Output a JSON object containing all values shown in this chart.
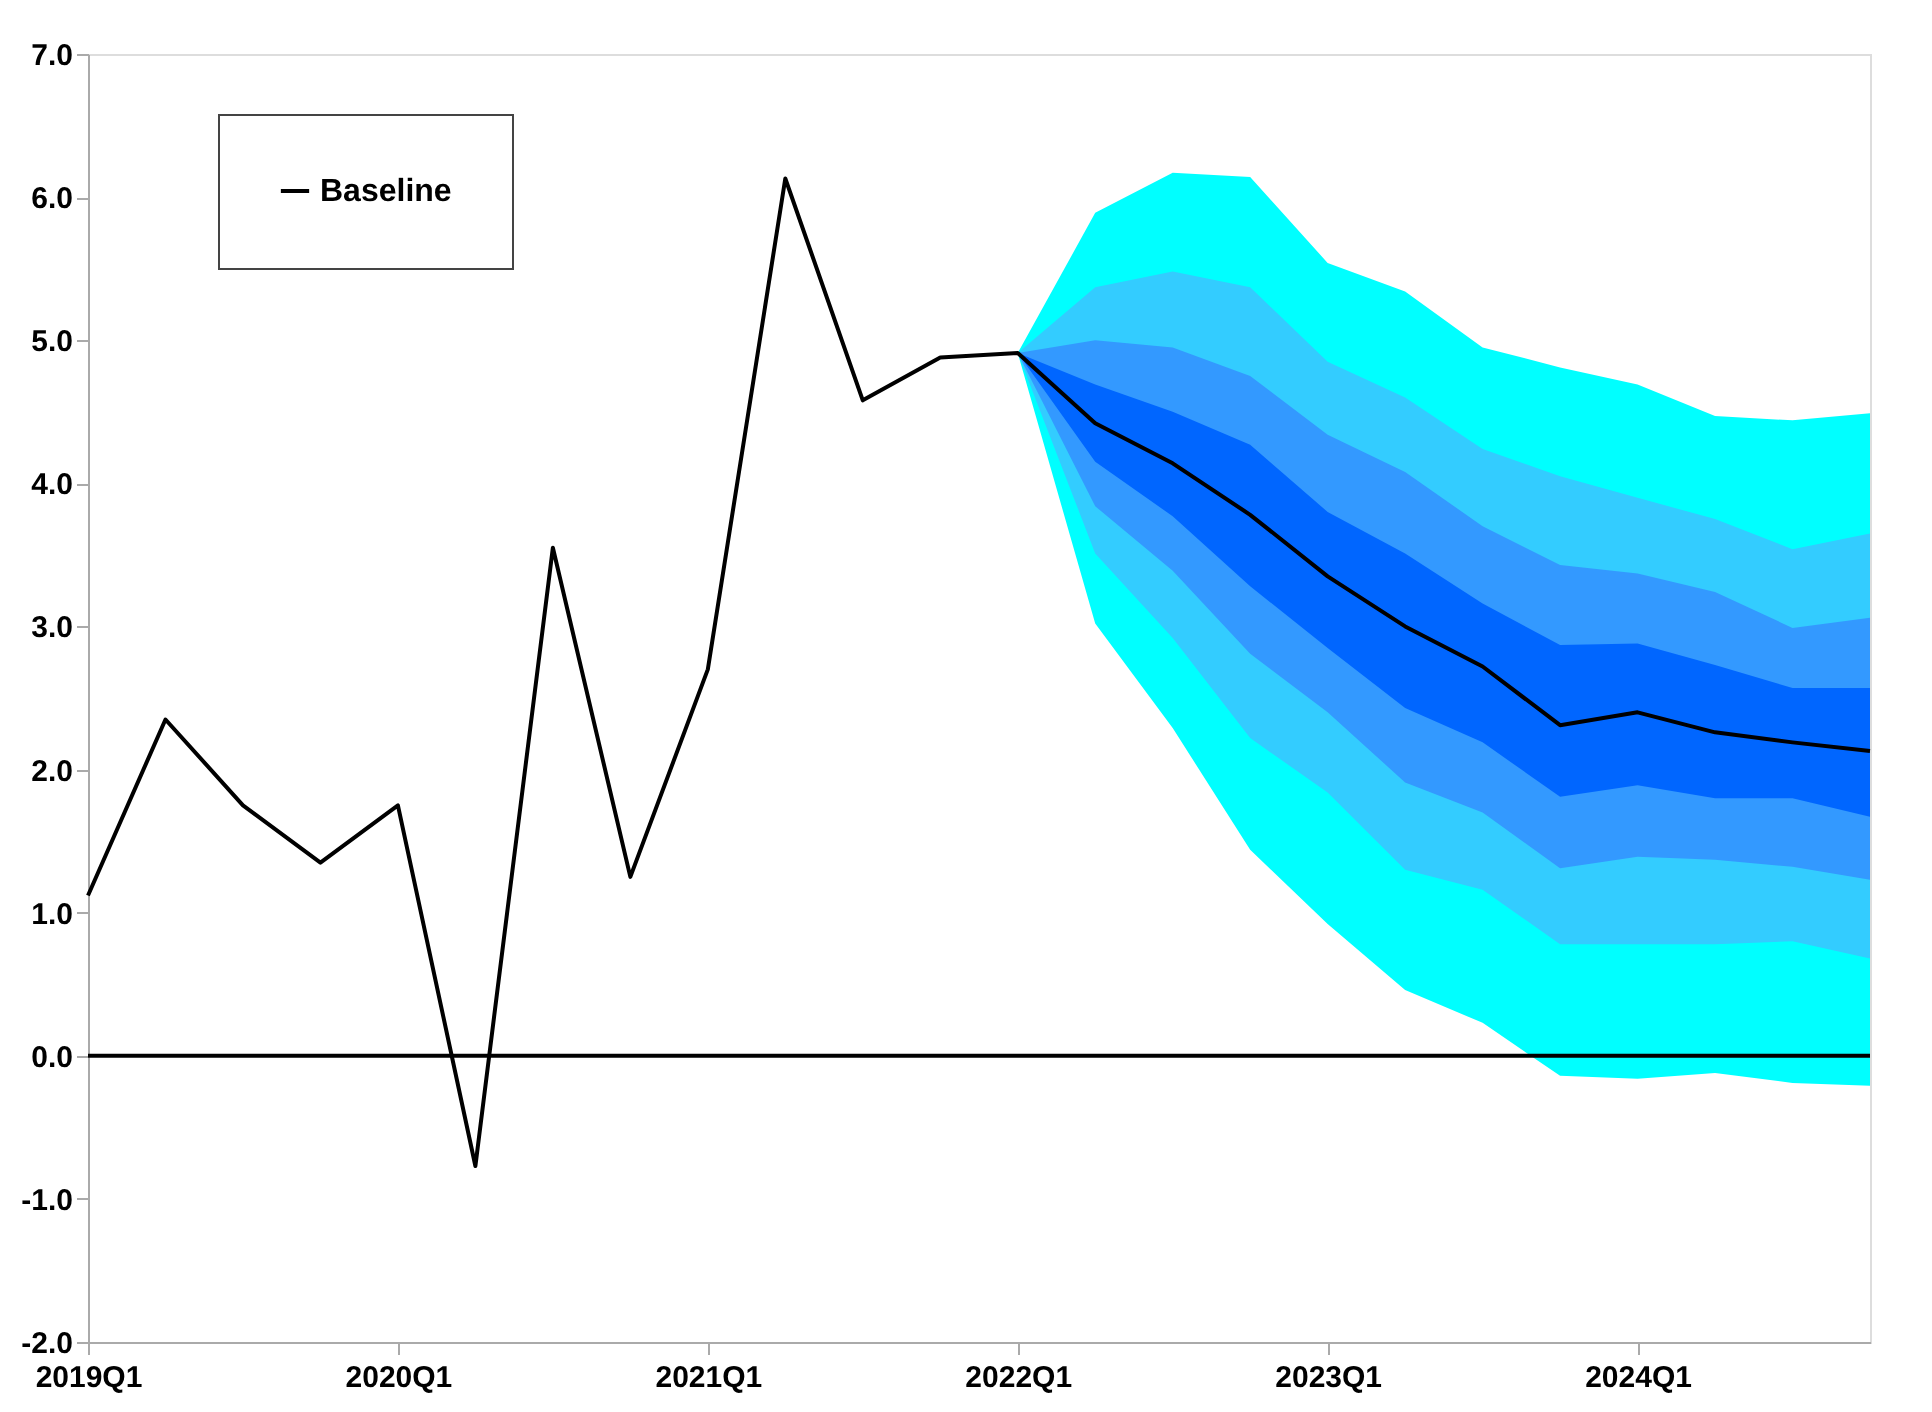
{
  "chart_data": {
    "type": "line",
    "categories": [
      "2019Q1",
      null,
      null,
      null,
      "2020Q1",
      null,
      null,
      null,
      "2021Q1",
      null,
      null,
      null,
      "2022Q1",
      null,
      null,
      null,
      "2023Q1",
      null,
      null,
      null,
      "2024Q1",
      null,
      null,
      null
    ],
    "series": [
      {
        "type": "area",
        "color": "#00ffff",
        "values": [
          null,
          null,
          null,
          null,
          null,
          null,
          null,
          null,
          null,
          null,
          null,
          null,
          null,
          null,
          null,
          null,
          null,
          null,
          null,
          null,
          null,
          null,
          null,
          null
        ],
        "upper": [
          null,
          null,
          null,
          null,
          null,
          null,
          null,
          null,
          null,
          null,
          null,
          null,
          4.91,
          5.89,
          6.17,
          6.14,
          5.54,
          5.34,
          4.95,
          4.81,
          4.69,
          4.47,
          4.44,
          4.49
        ],
        "lower": [
          null,
          null,
          null,
          null,
          null,
          null,
          null,
          null,
          null,
          null,
          null,
          null,
          4.91,
          3.02,
          2.29,
          1.44,
          0.92,
          0.46,
          0.23,
          -0.14,
          -0.16,
          -0.12,
          -0.19,
          -0.21
        ]
      },
      {
        "type": "area",
        "color": "#33ccff",
        "values": [
          null,
          null,
          null,
          null,
          null,
          null,
          null,
          null,
          null,
          null,
          null,
          null,
          null,
          null,
          null,
          null,
          null,
          null,
          null,
          null,
          null,
          null,
          null,
          null
        ],
        "upper": [
          null,
          null,
          null,
          null,
          null,
          null,
          null,
          null,
          null,
          null,
          null,
          null,
          4.91,
          5.37,
          5.48,
          5.37,
          4.85,
          4.6,
          4.24,
          4.05,
          3.9,
          3.75,
          3.54,
          3.65
        ],
        "lower": [
          null,
          null,
          null,
          null,
          null,
          null,
          null,
          null,
          null,
          null,
          null,
          null,
          4.91,
          3.51,
          2.92,
          2.22,
          1.84,
          1.3,
          1.16,
          0.78,
          0.78,
          0.78,
          0.8,
          0.68
        ]
      },
      {
        "type": "area",
        "color": "#3399ff",
        "values": [
          null,
          null,
          null,
          null,
          null,
          null,
          null,
          null,
          null,
          null,
          null,
          null,
          null,
          null,
          null,
          null,
          null,
          null,
          null,
          null,
          null,
          null,
          null,
          null
        ],
        "upper": [
          null,
          null,
          null,
          null,
          null,
          null,
          null,
          null,
          null,
          null,
          null,
          null,
          4.91,
          5.0,
          4.95,
          4.75,
          4.34,
          4.08,
          3.7,
          3.43,
          3.37,
          3.24,
          2.99,
          3.06
        ],
        "lower": [
          null,
          null,
          null,
          null,
          null,
          null,
          null,
          null,
          null,
          null,
          null,
          null,
          4.91,
          3.84,
          3.39,
          2.81,
          2.4,
          1.91,
          1.7,
          1.31,
          1.39,
          1.37,
          1.32,
          1.23
        ]
      },
      {
        "type": "area",
        "color": "#0066ff",
        "values": [
          null,
          null,
          null,
          null,
          null,
          null,
          null,
          null,
          null,
          null,
          null,
          null,
          null,
          null,
          null,
          null,
          null,
          null,
          null,
          null,
          null,
          null,
          null,
          null
        ],
        "upper": [
          null,
          null,
          null,
          null,
          null,
          null,
          null,
          null,
          null,
          null,
          null,
          null,
          4.91,
          4.69,
          4.5,
          4.27,
          3.8,
          3.51,
          3.16,
          2.87,
          2.88,
          2.73,
          2.57,
          2.57
        ],
        "lower": [
          null,
          null,
          null,
          null,
          null,
          null,
          null,
          null,
          null,
          null,
          null,
          null,
          4.91,
          4.15,
          3.77,
          3.28,
          2.85,
          2.43,
          2.19,
          1.81,
          1.89,
          1.8,
          1.8,
          1.67
        ]
      },
      {
        "name": "Baseline",
        "color": "#000000",
        "values": [
          1.12,
          2.35,
          1.75,
          1.35,
          1.75,
          -0.77,
          3.55,
          1.25,
          2.7,
          6.13,
          4.58,
          4.88,
          4.91,
          4.42,
          4.14,
          3.78,
          3.35,
          3.0,
          2.72,
          2.31,
          2.4,
          2.26,
          2.19,
          2.13
        ]
      }
    ],
    "ylim": [
      -2,
      7
    ],
    "yticks": [
      {
        "value": -2,
        "label": "-2.0"
      },
      {
        "value": -1,
        "label": "-1.0"
      },
      {
        "value": 0,
        "label": "0.0"
      },
      {
        "value": 1,
        "label": "1.0"
      },
      {
        "value": 2,
        "label": "2.0"
      },
      {
        "value": 3,
        "label": "3.0"
      },
      {
        "value": 4,
        "label": "4.0"
      },
      {
        "value": 5,
        "label": "5.0"
      },
      {
        "value": 6,
        "label": "6.0"
      },
      {
        "value": 7,
        "label": "7.0"
      }
    ],
    "ref_lines": [
      {
        "axis": "y",
        "value": 0,
        "color": "#000000"
      }
    ],
    "legend": "top left",
    "grid": false,
    "line_style": "solid"
  }
}
